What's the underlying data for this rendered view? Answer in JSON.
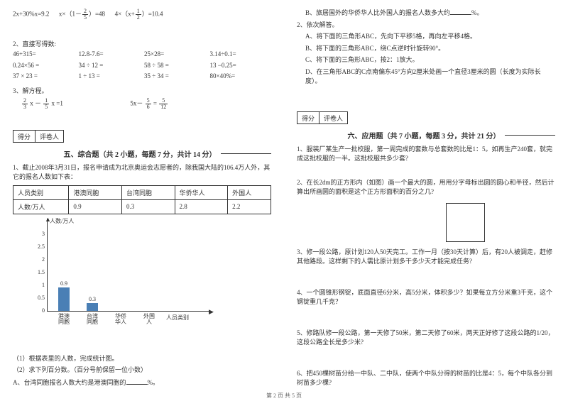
{
  "left": {
    "eq1_a": "2x+30%x=9.2",
    "eq1_b_pre": "x×（1－",
    "eq1_b_frac_n": "2",
    "eq1_b_frac_d": "5",
    "eq1_b_post": "）=48",
    "eq1_c_pre": "4×（x+",
    "eq1_c_frac_n": "1",
    "eq1_c_frac_d": "2",
    "eq1_c_post": "）=10.4",
    "s2": "2、直接写得数:",
    "calc": [
      "46+315=",
      "12.8-7.6=",
      "25×28=",
      "3.14÷0.1=",
      "0.24×56 =",
      "34 ÷ 12 =",
      "58 ÷ 58 =",
      "13 −0.25=",
      "37 × 23 =",
      "1 ÷ 13 =",
      "35 ÷ 34 =",
      "80×40%="
    ],
    "s3": "3、解方程。",
    "eq3a_f1n": "2",
    "eq3a_f1d": "3",
    "eq3a_mid": " x － ",
    "eq3a_f2n": "1",
    "eq3a_f2d": "5",
    "eq3a_post": " x =1",
    "eq3b_pre": "5x－ ",
    "eq3b_f1n": "5",
    "eq3b_f1d": "6",
    "eq3b_eq": " = ",
    "eq3b_f2n": "5",
    "eq3b_f2d": "12",
    "score_a": "得分",
    "score_b": "评卷人",
    "title5": "五、综合题（共 2 小题，每题 7 分，共计 14 分）",
    "q5_1": "1、截止2008年3月31日，报名申请成为北京奥运会志愿者的，除我国大陆的106.4万人外，其它的报名人数如下表：",
    "table": {
      "headers": [
        "人员类别",
        "港澳同胞",
        "台湾同胞",
        "华侨华人",
        "外国人"
      ],
      "row_label": "人数/万人",
      "row": [
        "0.9",
        "0.3",
        "2.8",
        "2.2"
      ]
    },
    "chart": {
      "ylabel": "人数/万人",
      "xlabel": "人员类别",
      "yticks": [
        "0",
        "0.5",
        "1",
        "1.5",
        "2",
        "2.5",
        "3"
      ],
      "cats": [
        "港澳同胞",
        "台湾同胞",
        "华侨华人",
        "外国人"
      ],
      "bars": [
        0.9,
        0.3
      ],
      "bar_labels": [
        "0.9",
        "0.3"
      ],
      "bar_color": "#4a7fb5"
    },
    "q5_1a": "（1）根据表里的人数，完成统计图。",
    "q5_1b": "（2）求下列百分数。（百分号前保留一位小数）",
    "q5_1c_pre": "A、台湾同胞报名人数大约是港澳同胞的",
    "q5_1c_post": "%。"
  },
  "right": {
    "q5_1d_pre": "B、旅居国外的华侨华人比外国人的报名人数多大约",
    "q5_1d_post": "%。",
    "q5_2": "2、依次解答。",
    "q5_2a": "A、将下面的三角形ABC，先向下平移5格，再向左平移4格。",
    "q5_2b": "B、将下面的三角形ABC，绕C点逆时针旋转90°。",
    "q5_2c": "C、将下面的三角形ABC，按2：1放大。",
    "q5_2d": "D、在三角形ABC的C点南偏东45°方向2厘米处画一个直径3厘米的圆（长度为实际长度）。",
    "title6": "六、应用题（共 7 小题，每题 3 分，共计 21 分）",
    "q6_1": "1、服装厂某生产一批校服，第一周完成的套数与总套数的比是1：5。如再生产240套，就完成这批校服的一半。这批校服共多少套?",
    "q6_2": "2、在长2dm的正方形内（如图）画一个最大的圆，用用分字母标出圆的圆心和半径，然后计算出所画圆的面积是这个正方形面积的百分之几?",
    "q6_3": "3、修一段公路，原计划120人50天完工。工作一月（按30天计算）后，有20人被调走，赶修其他路段。这样剩下的人需比原计划多干多少天才能完成任务?",
    "q6_4": "4、一个圆锥形钢锭，底面直径6分米，高5分米，体积多少？如果每立方分米重3千克，这个钢锭重几千克？",
    "q6_5": "5、修路队修一段公路，第一天修了50米，第二天修了60米，两天正好修了这段公路的1/20，这段公路全长是多少米?",
    "q6_6": "6、把450棵树苗分给一中队、二中队，使两个中队分得的树苗的比是4：5，每个中队各分到树苗多少棵?"
  },
  "footer": "第 2 页 共 5 页"
}
